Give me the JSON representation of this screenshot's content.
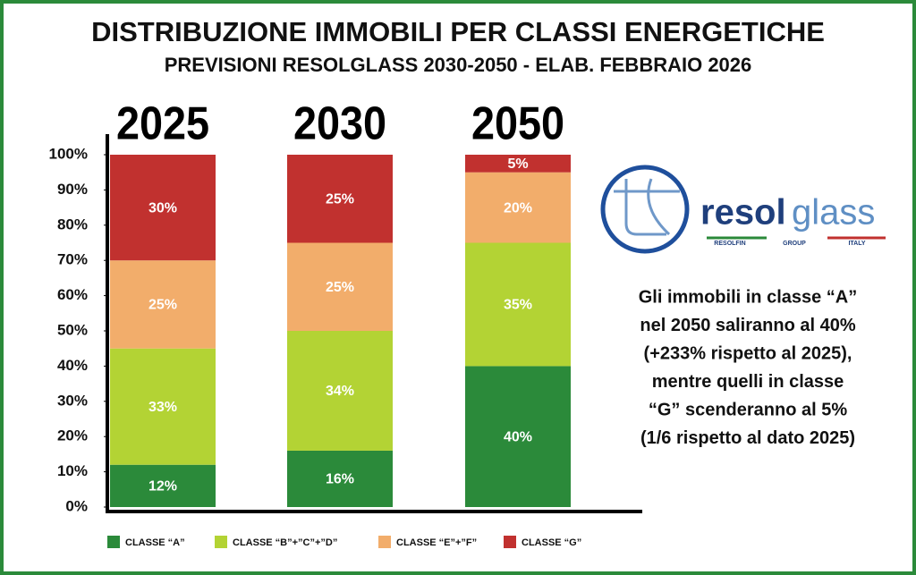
{
  "chart_data": {
    "type": "stacked_bar",
    "title": "DISTRIBUZIONE IMMOBILI PER CLASSI ENERGETICHE",
    "subtitle": "PREVISIONI RESOLGLASS 2030-2050 - ELAB. FEBBRAIO 2026",
    "categories": [
      "2025",
      "2030",
      "2050"
    ],
    "series": [
      {
        "name": "CLASSE “A”",
        "color": "#2b8a3a",
        "values": [
          12,
          16,
          40
        ],
        "value_labels": [
          "12%",
          "16%",
          "40%"
        ]
      },
      {
        "name": "CLASSE “B”+”C”+”D”",
        "color": "#b3d334",
        "values": [
          33,
          34,
          35
        ],
        "value_labels": [
          "33%",
          "34%",
          "35%"
        ]
      },
      {
        "name": "CLASSE “E”+”F”",
        "color": "#f2ad6b",
        "values": [
          25,
          25,
          20
        ],
        "value_labels": [
          "25%",
          "25%",
          "20%"
        ]
      },
      {
        "name": "CLASSE “G”",
        "color": "#c1312f",
        "values": [
          30,
          25,
          5
        ],
        "value_labels": [
          "30%",
          "25%",
          "5%"
        ]
      }
    ],
    "ylim": [
      0,
      100
    ],
    "yticks": [
      {
        "value": 0,
        "label": "0%"
      },
      {
        "value": 10,
        "label": "10%"
      },
      {
        "value": 20,
        "label": "20%"
      },
      {
        "value": 30,
        "label": "30%"
      },
      {
        "value": 40,
        "label": "40%"
      },
      {
        "value": 50,
        "label": "50%"
      },
      {
        "value": 60,
        "label": "60%"
      },
      {
        "value": 70,
        "label": "70%"
      },
      {
        "value": 80,
        "label": "80%"
      },
      {
        "value": 90,
        "label": "90%"
      },
      {
        "value": 100,
        "label": "100%"
      }
    ],
    "legend": "bottom",
    "annotation": [
      "Gli immobili in classe “A”",
      "nel 2050 saliranno al 40%",
      "(+233% rispetto al 2025),",
      "mentre quelli in classe",
      "“G” scenderanno al 5%",
      "(1/6 rispetto al dato 2025)"
    ],
    "logo": {
      "brand": [
        "resol",
        "glass"
      ],
      "tagline": [
        "RESOLFIN",
        "GROUP",
        "ITALY"
      ]
    }
  }
}
